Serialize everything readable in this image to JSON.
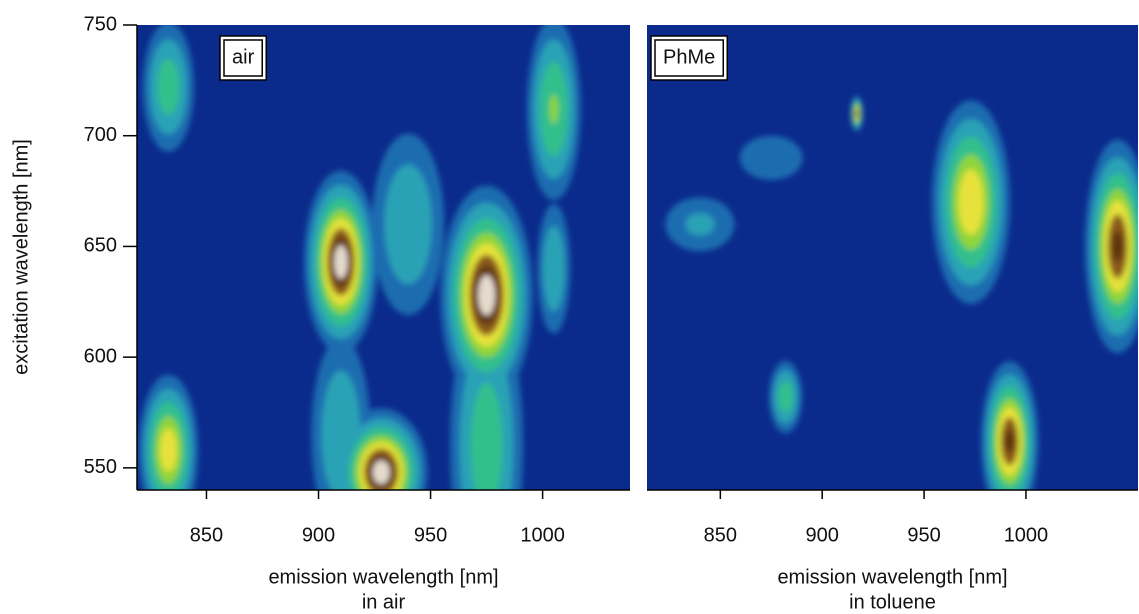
{
  "chart_data": [
    {
      "type": "heatmap",
      "annotation": "air",
      "xlabel": "emission wavelength [nm]",
      "subtitle": "in air",
      "ylabel": "excitation wavelength [nm]",
      "xlim": [
        819,
        1039
      ],
      "xticks": [
        850,
        900,
        950,
        1000
      ],
      "ylim": [
        540,
        750
      ],
      "yticks": [
        550,
        600,
        650,
        700,
        750
      ],
      "background": "#0b2b8c",
      "colormap": [
        {
          "level": 0.12,
          "color": "#1d6db0"
        },
        {
          "level": 0.22,
          "color": "#2aa2b6"
        },
        {
          "level": 0.35,
          "color": "#33bf8c"
        },
        {
          "level": 0.5,
          "color": "#8fd43a"
        },
        {
          "level": 0.62,
          "color": "#e6e23a"
        },
        {
          "level": 0.75,
          "color": "#8a5a1e"
        },
        {
          "level": 0.86,
          "color": "#5a3210"
        },
        {
          "level": 0.93,
          "color": "#e4dacd"
        }
      ],
      "spots": [
        {
          "x": 833,
          "y": 722,
          "sx": 7,
          "sy": 18,
          "z": 0.45
        },
        {
          "x": 833,
          "y": 558,
          "sx": 7,
          "sy": 18,
          "z": 0.72
        },
        {
          "x": 910,
          "y": 643,
          "sx": 8,
          "sy": 20,
          "z": 1.0
        },
        {
          "x": 928,
          "y": 548,
          "sx": 10,
          "sy": 14,
          "z": 1.0
        },
        {
          "x": 975,
          "y": 628,
          "sx": 10,
          "sy": 24,
          "z": 1.0
        },
        {
          "x": 940,
          "y": 660,
          "sx": 11,
          "sy": 28,
          "z": 0.35
        },
        {
          "x": 1005,
          "y": 712,
          "sx": 7,
          "sy": 24,
          "z": 0.52
        },
        {
          "x": 1005,
          "y": 640,
          "sx": 5,
          "sy": 20,
          "z": 0.35
        },
        {
          "x": 975,
          "y": 560,
          "sx": 10,
          "sy": 40,
          "z": 0.45
        },
        {
          "x": 910,
          "y": 565,
          "sx": 9,
          "sy": 30,
          "z": 0.35
        }
      ]
    },
    {
      "type": "heatmap",
      "annotation": "PhMe",
      "xlabel": "emission wavelength [nm]",
      "subtitle": "in toluene",
      "xlim": [
        814,
        1055
      ],
      "xticks": [
        850,
        900,
        950,
        1000
      ],
      "ylim": [
        540,
        750
      ],
      "background": "#0b2b8c",
      "colormap": [
        {
          "level": 0.12,
          "color": "#1d6db0"
        },
        {
          "level": 0.22,
          "color": "#2aa2b6"
        },
        {
          "level": 0.35,
          "color": "#33bf8c"
        },
        {
          "level": 0.5,
          "color": "#8fd43a"
        },
        {
          "level": 0.62,
          "color": "#e6e23a"
        },
        {
          "level": 0.75,
          "color": "#8a5a1e"
        },
        {
          "level": 0.86,
          "color": "#5a3210"
        },
        {
          "level": 0.93,
          "color": "#e4dacd"
        }
      ],
      "spots": [
        {
          "x": 973,
          "y": 670,
          "sx": 10,
          "sy": 24,
          "z": 0.75
        },
        {
          "x": 992,
          "y": 562,
          "sx": 7,
          "sy": 18,
          "z": 0.9
        },
        {
          "x": 882,
          "y": 582,
          "sx": 5,
          "sy": 10,
          "z": 0.45
        },
        {
          "x": 1045,
          "y": 650,
          "sx": 8,
          "sy": 24,
          "z": 0.9
        },
        {
          "x": 917,
          "y": 710,
          "sx": 1.5,
          "sy": 4,
          "z": 0.9
        },
        {
          "x": 840,
          "y": 660,
          "sx": 14,
          "sy": 10,
          "z": 0.25
        },
        {
          "x": 875,
          "y": 690,
          "sx": 14,
          "sy": 9,
          "z": 0.22
        }
      ]
    }
  ]
}
